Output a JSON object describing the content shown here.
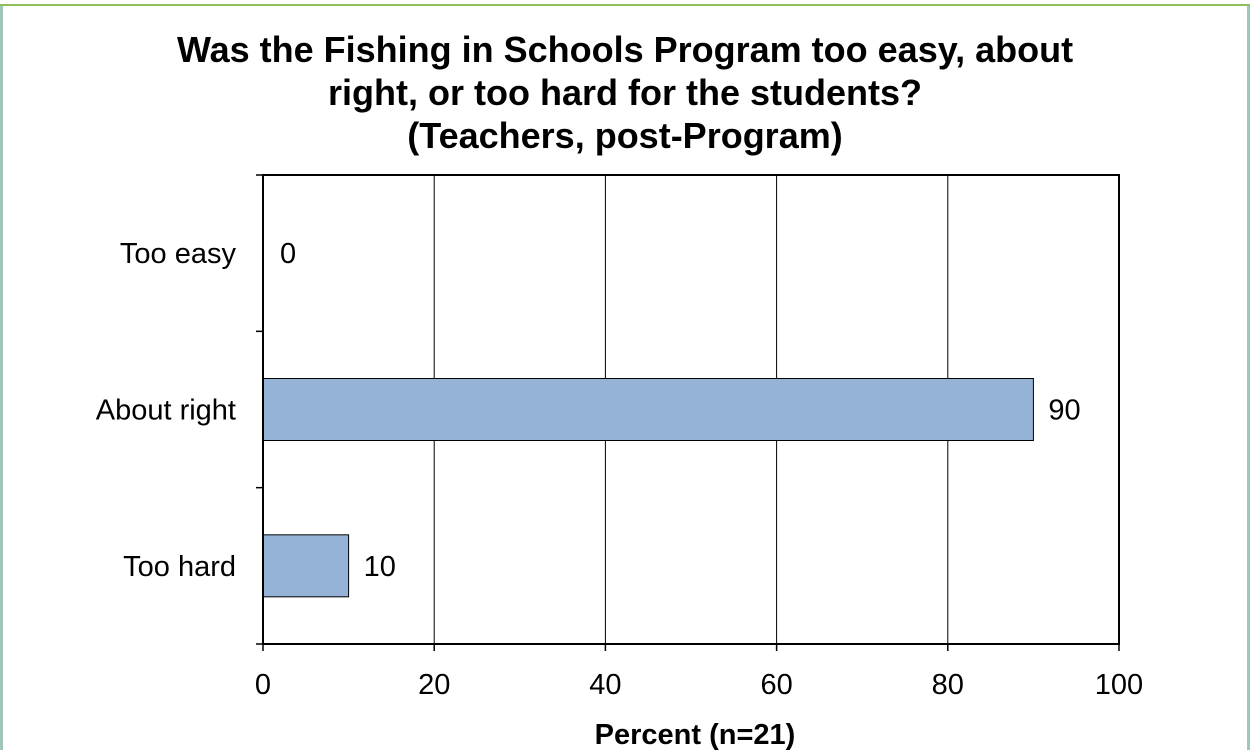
{
  "chart_data": {
    "type": "bar",
    "orientation": "horizontal",
    "title_lines": [
      "Was the Fishing in Schools Program too easy, about",
      "right, or too hard for the students?",
      "(Teachers, post-Program)"
    ],
    "categories": [
      "Too easy",
      "About right",
      "Too hard"
    ],
    "values": [
      0,
      90,
      10
    ],
    "data_labels": [
      "0",
      "90",
      "10"
    ],
    "xlabel": "Percent (n=21)",
    "xlim": [
      0,
      100
    ],
    "xticks": [
      "0",
      "20",
      "40",
      "60",
      "80",
      "100"
    ],
    "grid": "vertical",
    "bar_color": "#95b3d7"
  }
}
